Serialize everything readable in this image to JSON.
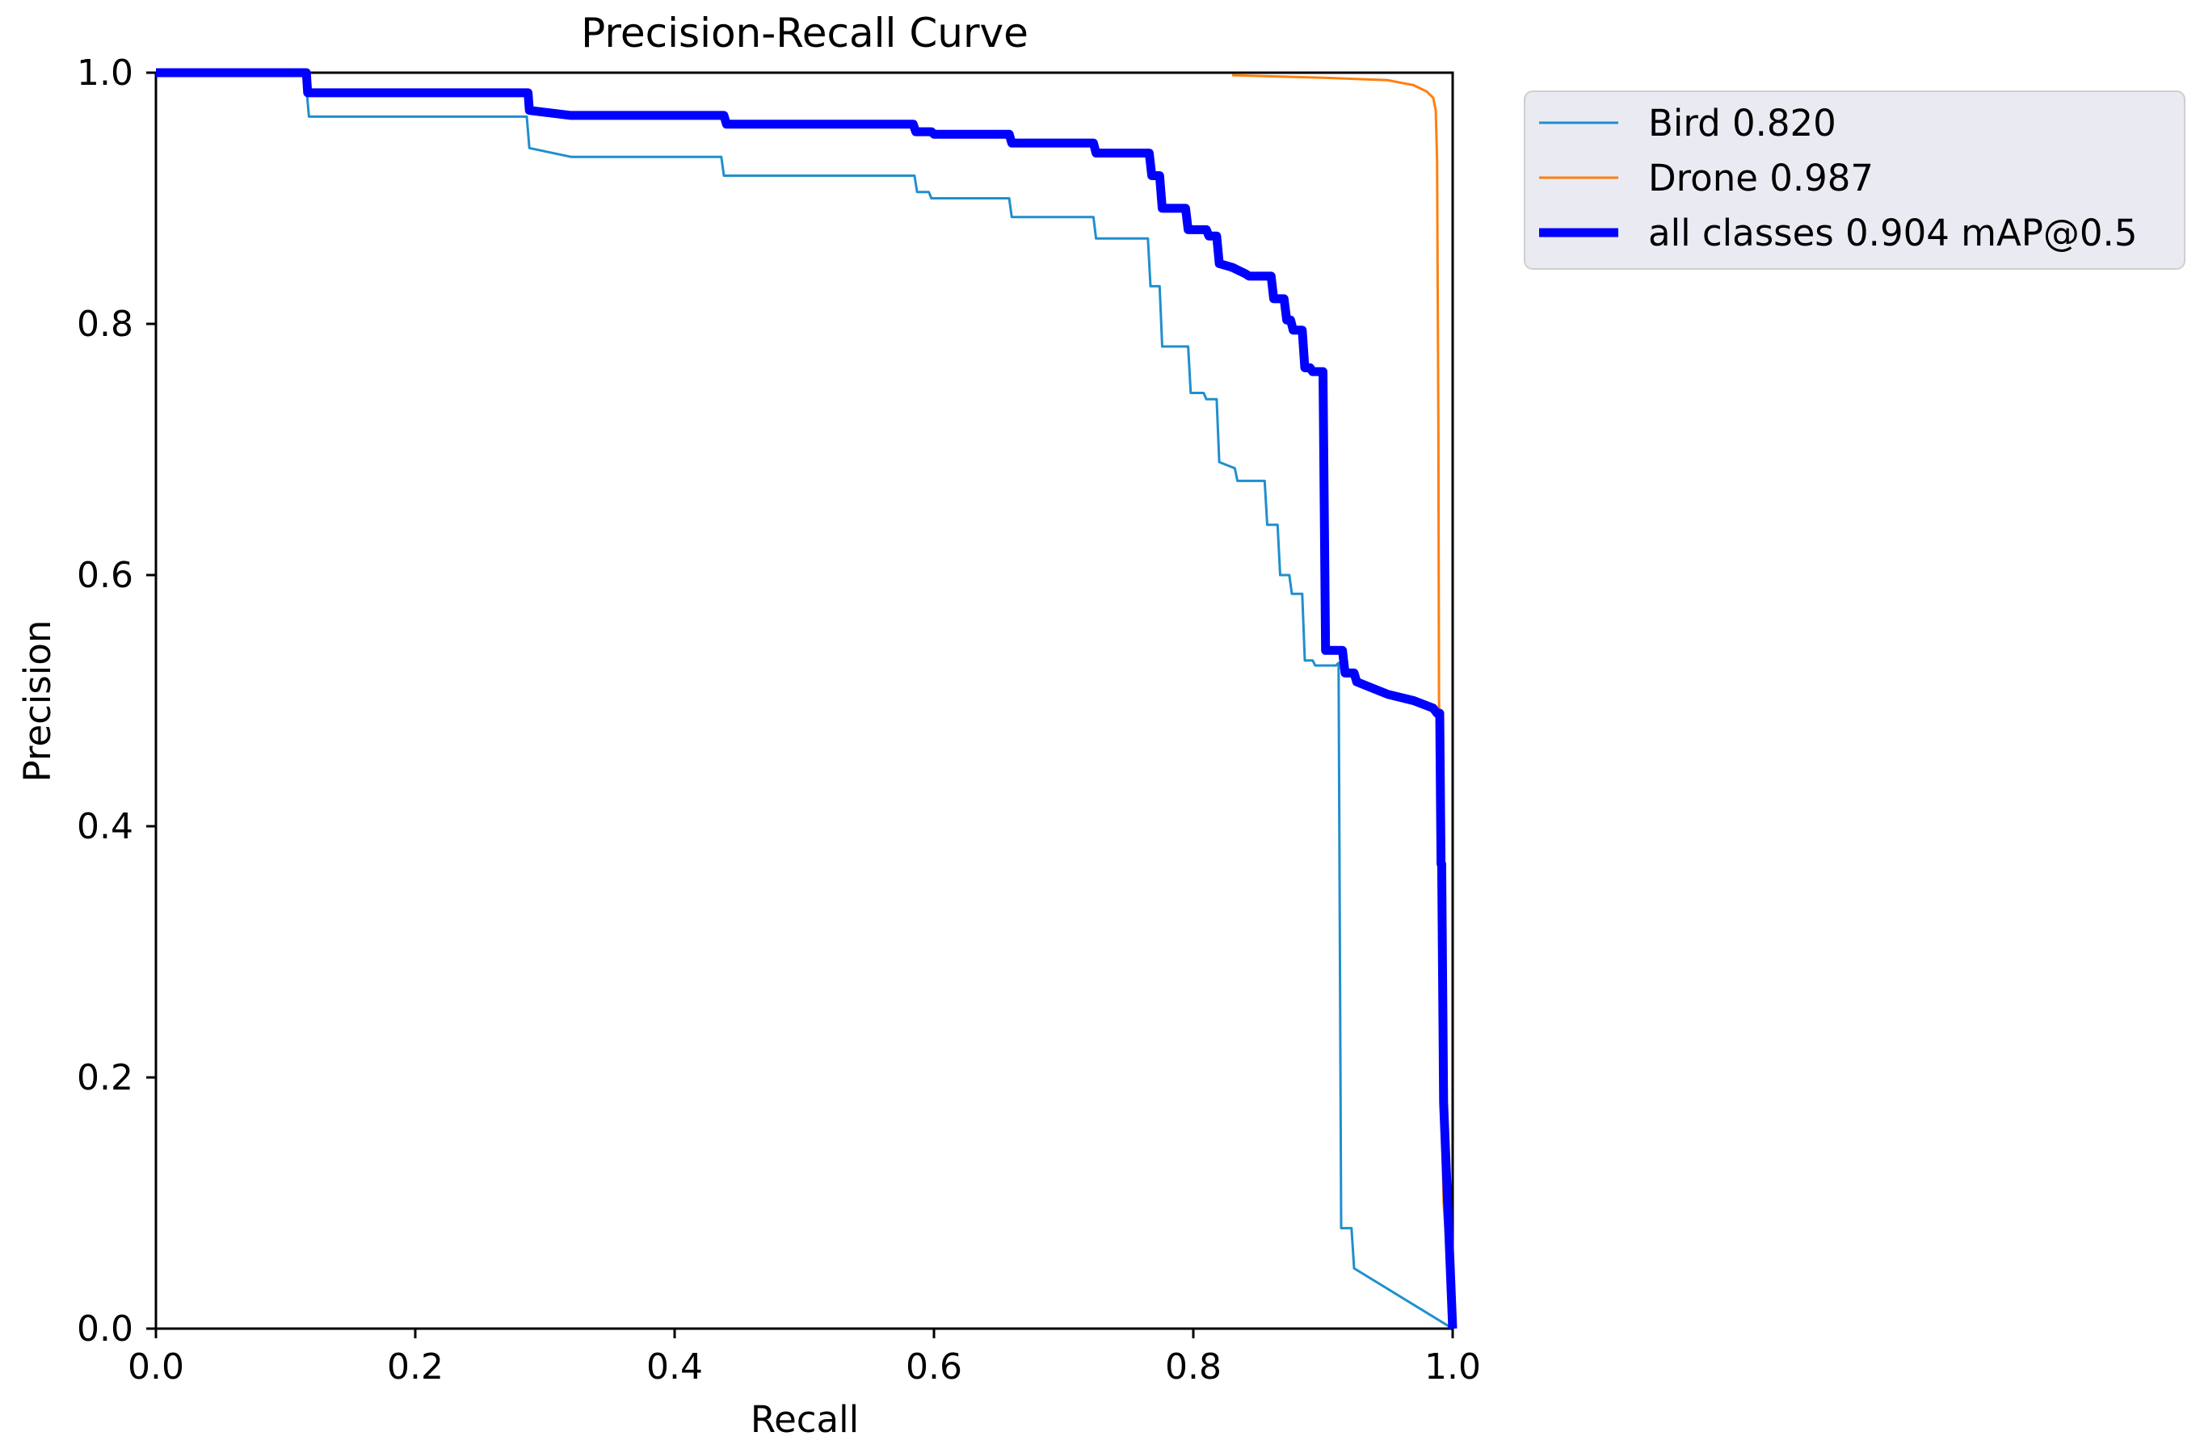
{
  "chart_data": {
    "type": "line",
    "title": "Precision-Recall Curve",
    "xlabel": "Recall",
    "ylabel": "Precision",
    "xlim": [
      0,
      1
    ],
    "ylim": [
      0,
      1
    ],
    "xticks": [
      "0.0",
      "0.2",
      "0.4",
      "0.6",
      "0.8",
      "1.0"
    ],
    "yticks": [
      "0.0",
      "0.2",
      "0.4",
      "0.6",
      "0.8",
      "1.0"
    ],
    "legend_position": "outside-top-right",
    "series": [
      {
        "name": "Bird",
        "legend_label": "Bird 0.820",
        "color": "#1f8fce",
        "width": "thin",
        "x": [
          0,
          0.115,
          0.118,
          0.286,
          0.288,
          0.32,
          0.436,
          0.438,
          0.585,
          0.587,
          0.596,
          0.598,
          0.658,
          0.66,
          0.723,
          0.725,
          0.765,
          0.767,
          0.774,
          0.776,
          0.796,
          0.798,
          0.808,
          0.81,
          0.818,
          0.82,
          0.832,
          0.834,
          0.855,
          0.857,
          0.865,
          0.867,
          0.874,
          0.876,
          0.884,
          0.886,
          0.892,
          0.894,
          0.91,
          0.912,
          0.914,
          0.922,
          0.924,
          1.0
        ],
        "y": [
          1.0,
          1.0,
          0.965,
          0.965,
          0.94,
          0.933,
          0.933,
          0.918,
          0.918,
          0.905,
          0.905,
          0.9,
          0.9,
          0.885,
          0.885,
          0.868,
          0.868,
          0.83,
          0.83,
          0.782,
          0.782,
          0.745,
          0.745,
          0.74,
          0.74,
          0.69,
          0.685,
          0.675,
          0.675,
          0.64,
          0.64,
          0.6,
          0.6,
          0.585,
          0.585,
          0.532,
          0.532,
          0.528,
          0.528,
          0.53,
          0.08,
          0.08,
          0.048,
          0.0
        ]
      },
      {
        "name": "Drone",
        "legend_label": "Drone 0.987",
        "color": "#ff7f0e",
        "width": "thin",
        "x": [
          0.83,
          0.9,
          0.95,
          0.97,
          0.98,
          0.985,
          0.987,
          0.988,
          0.989,
          0.9895,
          0.99,
          0.991,
          0.993,
          1.0
        ],
        "y": [
          0.998,
          0.996,
          0.994,
          0.99,
          0.985,
          0.98,
          0.97,
          0.93,
          0.72,
          0.5,
          0.48,
          0.2,
          0.1,
          0.0
        ]
      },
      {
        "name": "all classes",
        "legend_label": "all classes 0.904 mAP@0.5",
        "color": "#0000ff",
        "width": "thick",
        "x": [
          0,
          0.116,
          0.117,
          0.287,
          0.288,
          0.32,
          0.438,
          0.44,
          0.584,
          0.586,
          0.598,
          0.6,
          0.658,
          0.66,
          0.723,
          0.725,
          0.766,
          0.768,
          0.774,
          0.776,
          0.794,
          0.796,
          0.81,
          0.812,
          0.818,
          0.82,
          0.83,
          0.84,
          0.843,
          0.86,
          0.862,
          0.87,
          0.872,
          0.875,
          0.877,
          0.884,
          0.886,
          0.89,
          0.892,
          0.9,
          0.902,
          0.915,
          0.917,
          0.924,
          0.926,
          0.95,
          0.97,
          0.985,
          0.988,
          0.99,
          0.991,
          0.9915,
          0.993,
          1.0
        ],
        "y": [
          1.0,
          1.0,
          0.984,
          0.984,
          0.97,
          0.966,
          0.966,
          0.959,
          0.959,
          0.953,
          0.953,
          0.951,
          0.951,
          0.944,
          0.944,
          0.936,
          0.936,
          0.918,
          0.918,
          0.892,
          0.892,
          0.875,
          0.875,
          0.87,
          0.87,
          0.848,
          0.845,
          0.84,
          0.838,
          0.838,
          0.82,
          0.82,
          0.803,
          0.803,
          0.795,
          0.795,
          0.765,
          0.765,
          0.762,
          0.762,
          0.54,
          0.54,
          0.522,
          0.522,
          0.515,
          0.505,
          0.5,
          0.494,
          0.49,
          0.49,
          0.37,
          0.37,
          0.18,
          0.0
        ]
      }
    ]
  }
}
